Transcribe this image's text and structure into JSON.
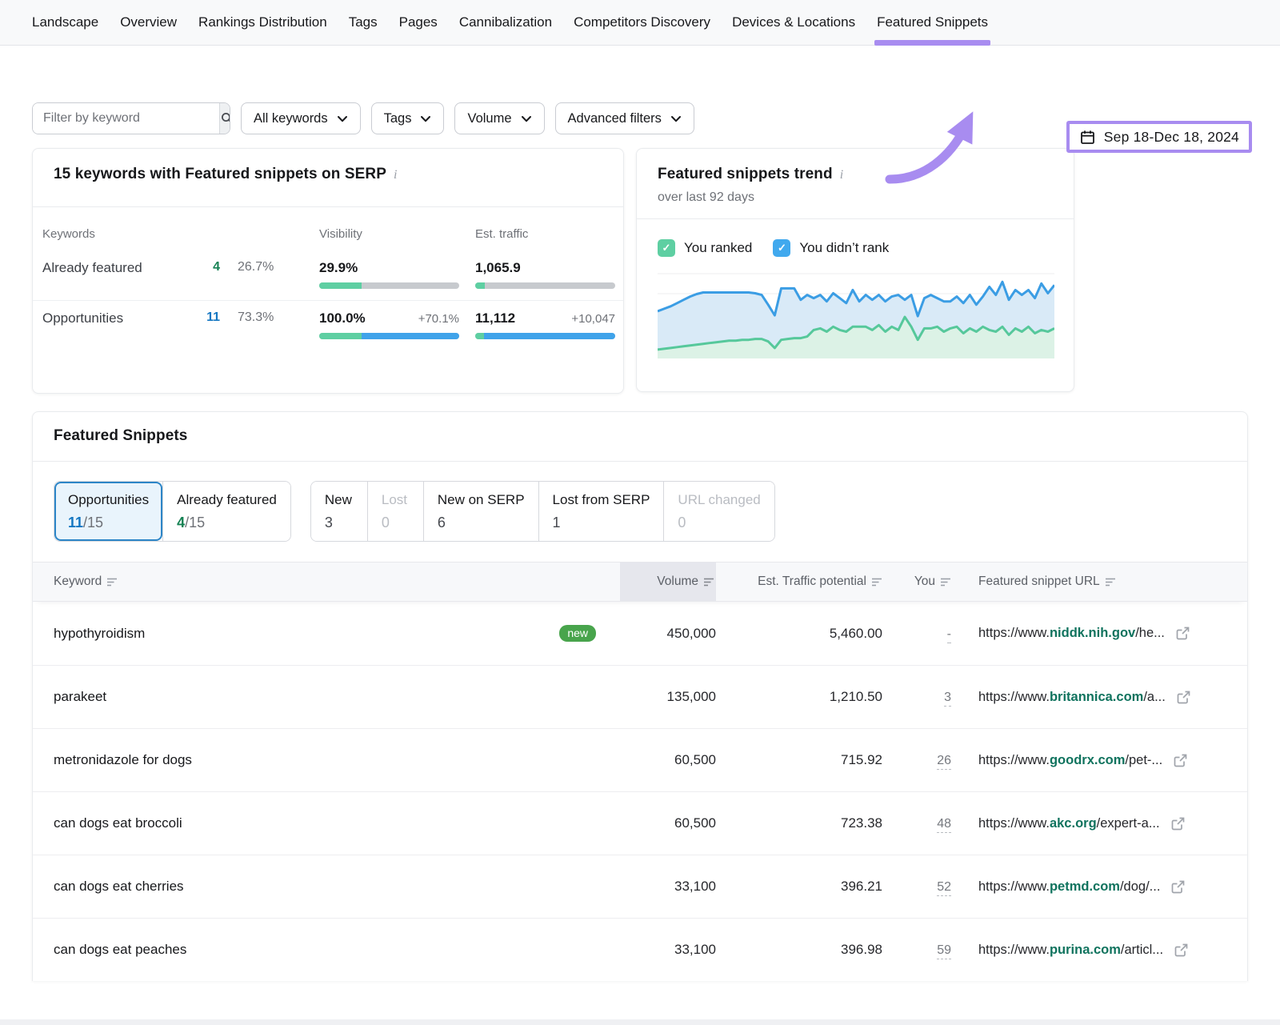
{
  "nav": {
    "items": [
      "Landscape",
      "Overview",
      "Rankings Distribution",
      "Tags",
      "Pages",
      "Cannibalization",
      "Competitors Discovery",
      "Devices & Locations",
      "Featured Snippets"
    ],
    "active": "Featured Snippets"
  },
  "date_picker": {
    "range": "Sep 18-Dec 18, 2024"
  },
  "filters": {
    "keyword_placeholder": "Filter by keyword",
    "dropdowns": [
      "All keywords",
      "Tags",
      "Volume",
      "Advanced filters"
    ]
  },
  "summary_panel": {
    "title": "15 keywords with Featured snippets on SERP",
    "col_keywords": "Keywords",
    "col_visibility": "Visibility",
    "col_traffic": "Est. traffic",
    "rows": [
      {
        "label": "Already featured",
        "count": "4",
        "share": "26.7%",
        "visibility": "29.9%",
        "visibility_delta": "",
        "traffic": "1,065.9",
        "traffic_delta": "",
        "bars": {
          "vis_green": 30,
          "vis_blue": 0,
          "tr_green": 7,
          "tr_blue": 0
        }
      },
      {
        "label": "Opportunities",
        "count": "11",
        "share": "73.3%",
        "visibility": "100.0%",
        "visibility_delta": "+70.1%",
        "traffic": "11,112",
        "traffic_delta": "+10,047",
        "bars": {
          "vis_green": 30,
          "vis_blue": 70,
          "tr_green": 6,
          "tr_blue": 94
        }
      }
    ]
  },
  "trend_panel": {
    "title": "Featured snippets trend",
    "subtitle": "over last 92 days",
    "legend_ranked": "You ranked",
    "legend_didnt": "You didn’t rank"
  },
  "chart_data": {
    "type": "area",
    "title": "Featured snippets trend",
    "subtitle": "over last 92 days",
    "x_span_days": 92,
    "grid": true,
    "ylim": [
      0,
      100
    ],
    "legend_position": "top",
    "note": "values estimated from pixel positions; no numeric axis labels shown in UI",
    "series": [
      {
        "name": "You didn’t rank",
        "color": "#3b9de4",
        "fill": "#d9eaf7",
        "values": [
          52,
          55,
          58,
          62,
          66,
          70,
          73,
          75,
          75,
          75,
          75,
          75,
          75,
          75,
          75,
          74,
          72,
          60,
          47,
          80,
          80,
          80,
          66,
          72,
          68,
          72,
          64,
          74,
          68,
          62,
          78,
          64,
          72,
          66,
          72,
          64,
          70,
          72,
          66,
          72,
          46,
          68,
          72,
          68,
          64,
          64,
          70,
          62,
          72,
          60,
          70,
          82,
          72,
          88,
          66,
          78,
          72,
          78,
          68,
          86,
          74,
          84
        ]
      },
      {
        "name": "You ranked",
        "color": "#56c89b",
        "fill": "#dcf2e6",
        "values": [
          5,
          6,
          7,
          8,
          9,
          10,
          11,
          12,
          13,
          14,
          15,
          16,
          16,
          17,
          17,
          18,
          18,
          15,
          7,
          17,
          18,
          19,
          19,
          21,
          29,
          31,
          27,
          33,
          29,
          27,
          33,
          33,
          33,
          29,
          35,
          27,
          33,
          29,
          45,
          33,
          17,
          31,
          31,
          33,
          27,
          31,
          33,
          25,
          31,
          27,
          33,
          29,
          27,
          33,
          23,
          31,
          27,
          33,
          25,
          29,
          27,
          31
        ]
      }
    ]
  },
  "snippets_panel": {
    "title": "Featured Snippets",
    "tab_opportunities": {
      "label": "Opportunities",
      "value": "11",
      "suffix": "/15"
    },
    "tab_already": {
      "label": "Already featured",
      "value": "4",
      "suffix": "/15"
    },
    "stats": [
      {
        "label": "New",
        "value": "3"
      },
      {
        "label": "Lost",
        "value": "0"
      },
      {
        "label": "New on SERP",
        "value": "6"
      },
      {
        "label": "Lost from SERP",
        "value": "1"
      },
      {
        "label": "URL changed",
        "value": "0"
      }
    ]
  },
  "table": {
    "col_keyword": "Keyword",
    "col_volume": "Volume",
    "col_est": "Est. Traffic potential",
    "col_you": "You",
    "col_url": "Featured snippet URL",
    "rows": [
      {
        "keyword": "hypothyroidism",
        "badge": "new",
        "volume": "450,000",
        "est": "5,460.00",
        "you": "-",
        "url_prefix": "https://www.",
        "url_domain": "niddk.nih.gov",
        "url_path": "/he..."
      },
      {
        "keyword": "parakeet",
        "badge": "",
        "volume": "135,000",
        "est": "1,210.50",
        "you": "3",
        "url_prefix": "https://www.",
        "url_domain": "britannica.com",
        "url_path": "/a..."
      },
      {
        "keyword": "metronidazole for dogs",
        "badge": "",
        "volume": "60,500",
        "est": "715.92",
        "you": "26",
        "url_prefix": "https://www.",
        "url_domain": "goodrx.com",
        "url_path": "/pet-..."
      },
      {
        "keyword": "can dogs eat broccoli",
        "badge": "",
        "volume": "60,500",
        "est": "723.38",
        "you": "48",
        "url_prefix": "https://www.",
        "url_domain": "akc.org",
        "url_path": "/expert-a..."
      },
      {
        "keyword": "can dogs eat cherries",
        "badge": "",
        "volume": "33,100",
        "est": "396.21",
        "you": "52",
        "url_prefix": "https://www.",
        "url_domain": "petmd.com",
        "url_path": "/dog/..."
      },
      {
        "keyword": "can dogs eat peaches",
        "badge": "",
        "volume": "33,100",
        "est": "396.98",
        "you": "59",
        "url_prefix": "https://www.",
        "url_domain": "purina.com",
        "url_path": "/articl..."
      }
    ]
  },
  "colors": {
    "accent_purple": "#a88cf0",
    "mint_green": "#5ecfa2",
    "sky_blue": "#3fa3ea",
    "link_green": "#10735e",
    "badge_green": "#48a44c",
    "count_blue": "#1577c2",
    "count_green": "#168254"
  }
}
